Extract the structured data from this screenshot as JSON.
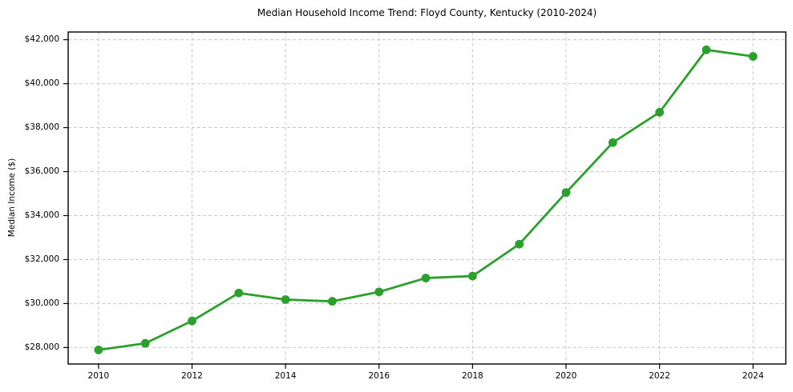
{
  "chart_data": {
    "type": "line",
    "title": "Median Household Income Trend: Floyd County, Kentucky (2010-2024)",
    "xlabel": "",
    "ylabel": "Median Income ($)",
    "x": [
      2010,
      2011,
      2012,
      2013,
      2014,
      2015,
      2016,
      2017,
      2018,
      2019,
      2020,
      2021,
      2022,
      2023,
      2024
    ],
    "series": [
      {
        "name": "Median Household Income",
        "values": [
          27890,
          28190,
          29210,
          30480,
          30180,
          30100,
          30530,
          31160,
          31250,
          32700,
          35050,
          37320,
          38700,
          41540,
          41240
        ]
      }
    ],
    "xticks": [
      2010,
      2012,
      2014,
      2016,
      2018,
      2020,
      2022,
      2024
    ],
    "xtick_labels": [
      "2010",
      "2012",
      "2014",
      "2016",
      "2018",
      "2020",
      "2022",
      "2024"
    ],
    "yticks": [
      28000,
      30000,
      32000,
      34000,
      36000,
      38000,
      40000,
      42000
    ],
    "ytick_labels": [
      "$28,000",
      "$30,000",
      "$32,000",
      "$34,000",
      "$36,000",
      "$38,000",
      "$40,000",
      "$42,000"
    ],
    "xlim": [
      2009.35,
      2024.7
    ],
    "ylim": [
      27250,
      42350
    ],
    "grid": true,
    "grid_style": "dashed",
    "grid_color": "#c9c9c9",
    "legend": "none",
    "line_color": "#2ca02c",
    "marker": "circle",
    "spine_color": "#000000",
    "background": "#ffffff"
  }
}
